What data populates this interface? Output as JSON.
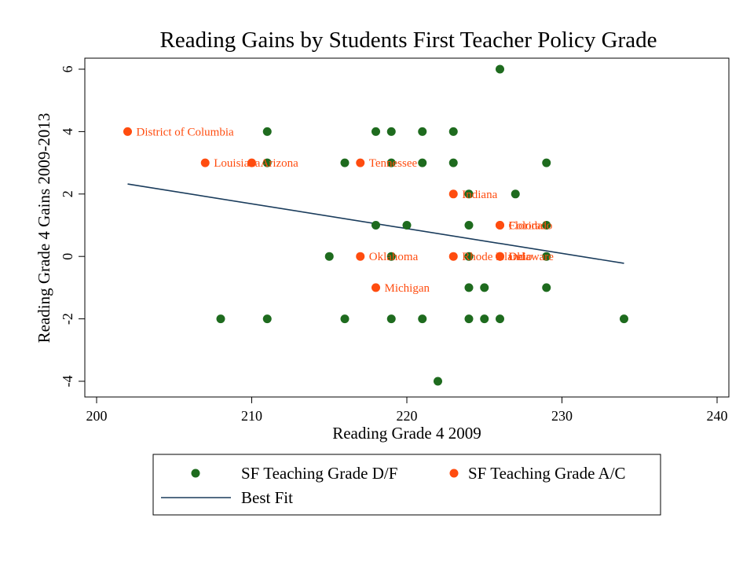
{
  "chart_data": {
    "type": "scatter",
    "title": "Reading Gains by Students First Teacher Policy Grade",
    "xlabel": "Reading Grade 4 2009",
    "ylabel": "Reading Grade 4 Gains 2009-2013",
    "xlim": [
      200,
      240
    ],
    "ylim": [
      -4,
      6
    ],
    "xticks": [
      200,
      210,
      220,
      230,
      240
    ],
    "yticks": [
      -4,
      -2,
      0,
      2,
      4,
      6
    ],
    "grid": false,
    "legend_position": "bottom",
    "colors": {
      "df": "#1e6b1e",
      "ac": "#ff4c0f",
      "fit": "#1a3c5c",
      "label": "#ff4c0f"
    },
    "series": [
      {
        "name": "SF Teaching Grade D/F",
        "points": [
          {
            "x": 226,
            "y": 6
          },
          {
            "x": 211,
            "y": 4
          },
          {
            "x": 218,
            "y": 4
          },
          {
            "x": 219,
            "y": 4
          },
          {
            "x": 221,
            "y": 4
          },
          {
            "x": 223,
            "y": 4
          },
          {
            "x": 211,
            "y": 3
          },
          {
            "x": 216,
            "y": 3
          },
          {
            "x": 219,
            "y": 3
          },
          {
            "x": 221,
            "y": 3
          },
          {
            "x": 223,
            "y": 3
          },
          {
            "x": 229,
            "y": 3
          },
          {
            "x": 224,
            "y": 2
          },
          {
            "x": 227,
            "y": 2
          },
          {
            "x": 218,
            "y": 1
          },
          {
            "x": 220,
            "y": 1
          },
          {
            "x": 224,
            "y": 1
          },
          {
            "x": 229,
            "y": 1
          },
          {
            "x": 215,
            "y": 0
          },
          {
            "x": 219,
            "y": 0
          },
          {
            "x": 224,
            "y": 0
          },
          {
            "x": 229,
            "y": 0
          },
          {
            "x": 224,
            "y": -1
          },
          {
            "x": 225,
            "y": -1
          },
          {
            "x": 229,
            "y": -1
          },
          {
            "x": 208,
            "y": -2
          },
          {
            "x": 211,
            "y": -2
          },
          {
            "x": 216,
            "y": -2
          },
          {
            "x": 219,
            "y": -2
          },
          {
            "x": 221,
            "y": -2
          },
          {
            "x": 224,
            "y": -2
          },
          {
            "x": 225,
            "y": -2
          },
          {
            "x": 226,
            "y": -2
          },
          {
            "x": 234,
            "y": -2
          },
          {
            "x": 222,
            "y": -4
          }
        ]
      },
      {
        "name": "SF Teaching Grade A/C",
        "points": [
          {
            "x": 202,
            "y": 4,
            "label": "District of Columbia"
          },
          {
            "x": 207,
            "y": 3,
            "label": "Louisiana"
          },
          {
            "x": 210,
            "y": 3,
            "label": "Arizona"
          },
          {
            "x": 217,
            "y": 3,
            "label": "Tennessee"
          },
          {
            "x": 223,
            "y": 2,
            "label": "Indiana"
          },
          {
            "x": 226,
            "y": 1,
            "label": "Florida"
          },
          {
            "x": 226,
            "y": 1,
            "label": "Colorado"
          },
          {
            "x": 217,
            "y": 0,
            "label": "Oklahoma"
          },
          {
            "x": 223,
            "y": 0,
            "label": "Rhode Island"
          },
          {
            "x": 226,
            "y": 0,
            "label": "Ohio"
          },
          {
            "x": 226,
            "y": 0,
            "label": "Delaware"
          },
          {
            "x": 218,
            "y": -1,
            "label": "Michigan"
          }
        ]
      }
    ],
    "fit_line": {
      "name": "Best Fit",
      "x": [
        202,
        234
      ],
      "y": [
        2.32,
        -0.22
      ]
    },
    "legend": {
      "items": [
        "SF Teaching Grade D/F",
        "SF Teaching Grade A/C",
        "Best Fit"
      ]
    }
  }
}
